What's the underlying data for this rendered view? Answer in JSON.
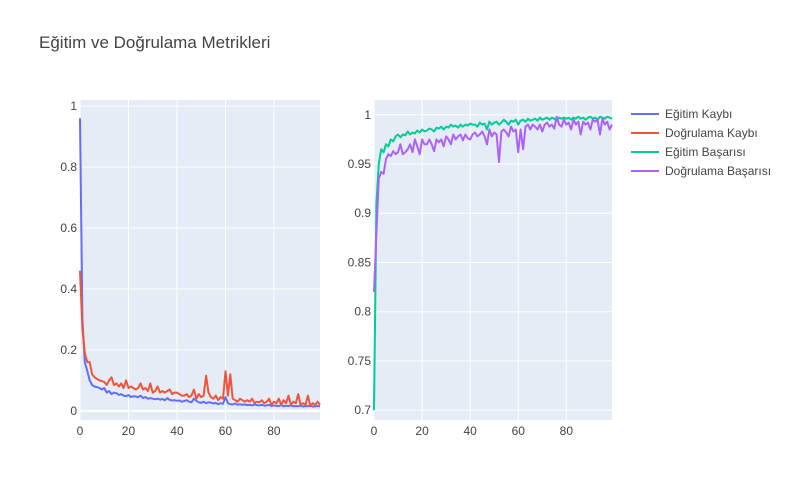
{
  "chart_data": [
    {
      "type": "line",
      "title": "Eğitim ve Doğrulama Metrikleri",
      "panel": "left",
      "xlabel": "",
      "ylabel": "",
      "xlim": [
        0,
        99
      ],
      "ylim": [
        -0.03,
        1.02
      ],
      "x_ticks": [
        0,
        20,
        40,
        60,
        80
      ],
      "y_ticks": [
        0,
        0.2,
        0.4,
        0.6,
        0.8,
        1
      ],
      "y_tick_labels": [
        "0",
        "0.2",
        "0.4",
        "0.6",
        "0.8",
        "1"
      ],
      "grid": true,
      "series": [
        {
          "name": "Eğitim Kaybı",
          "color": "#636efa",
          "x": [
            0,
            1,
            2,
            3,
            4,
            5,
            6,
            7,
            8,
            9,
            10,
            11,
            12,
            13,
            14,
            15,
            16,
            17,
            18,
            19,
            20,
            21,
            22,
            23,
            24,
            25,
            26,
            27,
            28,
            29,
            30,
            31,
            32,
            33,
            34,
            35,
            36,
            37,
            38,
            39,
            40,
            41,
            42,
            43,
            44,
            45,
            46,
            47,
            48,
            49,
            50,
            51,
            52,
            53,
            54,
            55,
            56,
            57,
            58,
            59,
            60,
            61,
            62,
            63,
            64,
            65,
            66,
            67,
            68,
            69,
            70,
            71,
            72,
            73,
            74,
            75,
            76,
            77,
            78,
            79,
            80,
            81,
            82,
            83,
            84,
            85,
            86,
            87,
            88,
            89,
            90,
            91,
            92,
            93,
            94,
            95,
            96,
            97,
            98,
            99
          ],
          "values": [
            0.96,
            0.3,
            0.16,
            0.13,
            0.1,
            0.085,
            0.08,
            0.078,
            0.075,
            0.07,
            0.075,
            0.06,
            0.065,
            0.055,
            0.06,
            0.058,
            0.052,
            0.055,
            0.05,
            0.048,
            0.052,
            0.045,
            0.048,
            0.047,
            0.045,
            0.05,
            0.042,
            0.045,
            0.04,
            0.042,
            0.04,
            0.038,
            0.04,
            0.037,
            0.039,
            0.035,
            0.042,
            0.036,
            0.034,
            0.035,
            0.033,
            0.034,
            0.03,
            0.032,
            0.035,
            0.03,
            0.028,
            0.04,
            0.033,
            0.028,
            0.026,
            0.03,
            0.025,
            0.028,
            0.027,
            0.024,
            0.026,
            0.022,
            0.025,
            0.023,
            0.045,
            0.025,
            0.022,
            0.021,
            0.024,
            0.02,
            0.022,
            0.02,
            0.021,
            0.019,
            0.02,
            0.018,
            0.021,
            0.019,
            0.018,
            0.02,
            0.017,
            0.018,
            0.02,
            0.016,
            0.018,
            0.017,
            0.016,
            0.019,
            0.015,
            0.017,
            0.016,
            0.018,
            0.015,
            0.016,
            0.015,
            0.017,
            0.014,
            0.016,
            0.015,
            0.017,
            0.014,
            0.015,
            0.016,
            0.015
          ]
        },
        {
          "name": "Doğrulama Kaybı",
          "color": "#ef553b",
          "x": [
            0,
            1,
            2,
            3,
            4,
            5,
            6,
            7,
            8,
            9,
            10,
            11,
            12,
            13,
            14,
            15,
            16,
            17,
            18,
            19,
            20,
            21,
            22,
            23,
            24,
            25,
            26,
            27,
            28,
            29,
            30,
            31,
            32,
            33,
            34,
            35,
            36,
            37,
            38,
            39,
            40,
            41,
            42,
            43,
            44,
            45,
            46,
            47,
            48,
            49,
            50,
            51,
            52,
            53,
            54,
            55,
            56,
            57,
            58,
            59,
            60,
            61,
            62,
            63,
            64,
            65,
            66,
            67,
            68,
            69,
            70,
            71,
            72,
            73,
            74,
            75,
            76,
            77,
            78,
            79,
            80,
            81,
            82,
            83,
            84,
            85,
            86,
            87,
            88,
            89,
            90,
            91,
            92,
            93,
            94,
            95,
            96,
            97,
            98,
            99
          ],
          "values": [
            0.46,
            0.27,
            0.19,
            0.16,
            0.16,
            0.12,
            0.11,
            0.105,
            0.1,
            0.098,
            0.095,
            0.085,
            0.1,
            0.11,
            0.085,
            0.09,
            0.08,
            0.09,
            0.075,
            0.1,
            0.075,
            0.08,
            0.075,
            0.07,
            0.075,
            0.09,
            0.07,
            0.075,
            0.065,
            0.09,
            0.06,
            0.065,
            0.08,
            0.06,
            0.065,
            0.06,
            0.065,
            0.07,
            0.055,
            0.06,
            0.06,
            0.055,
            0.05,
            0.05,
            0.055,
            0.045,
            0.05,
            0.07,
            0.04,
            0.055,
            0.045,
            0.05,
            0.115,
            0.06,
            0.045,
            0.04,
            0.05,
            0.035,
            0.045,
            0.04,
            0.13,
            0.05,
            0.12,
            0.04,
            0.035,
            0.03,
            0.04,
            0.035,
            0.03,
            0.035,
            0.03,
            0.04,
            0.025,
            0.03,
            0.028,
            0.035,
            0.025,
            0.03,
            0.04,
            0.02,
            0.03,
            0.025,
            0.04,
            0.02,
            0.035,
            0.025,
            0.05,
            0.02,
            0.03,
            0.025,
            0.055,
            0.02,
            0.025,
            0.02,
            0.05,
            0.015,
            0.025,
            0.02,
            0.03,
            0.02
          ]
        }
      ]
    },
    {
      "type": "line",
      "panel": "right",
      "xlabel": "",
      "ylabel": "",
      "xlim": [
        0,
        99
      ],
      "ylim": [
        0.69,
        1.015
      ],
      "x_ticks": [
        0,
        20,
        40,
        60,
        80
      ],
      "y_ticks": [
        0.7,
        0.75,
        0.8,
        0.85,
        0.9,
        0.95,
        1
      ],
      "y_tick_labels": [
        "0.7",
        "0.75",
        "0.8",
        "0.85",
        "0.9",
        "0.95",
        "1"
      ],
      "grid": true,
      "series": [
        {
          "name": "Eğitim Başarısı",
          "color": "#00cc96",
          "x": [
            0,
            1,
            2,
            3,
            4,
            5,
            6,
            7,
            8,
            9,
            10,
            11,
            12,
            13,
            14,
            15,
            16,
            17,
            18,
            19,
            20,
            21,
            22,
            23,
            24,
            25,
            26,
            27,
            28,
            29,
            30,
            31,
            32,
            33,
            34,
            35,
            36,
            37,
            38,
            39,
            40,
            41,
            42,
            43,
            44,
            45,
            46,
            47,
            48,
            49,
            50,
            51,
            52,
            53,
            54,
            55,
            56,
            57,
            58,
            59,
            60,
            61,
            62,
            63,
            64,
            65,
            66,
            67,
            68,
            69,
            70,
            71,
            72,
            73,
            74,
            75,
            76,
            77,
            78,
            79,
            80,
            81,
            82,
            83,
            84,
            85,
            86,
            87,
            88,
            89,
            90,
            91,
            92,
            93,
            94,
            95,
            96,
            97,
            98,
            99
          ],
          "values": [
            0.7,
            0.91,
            0.95,
            0.965,
            0.962,
            0.97,
            0.968,
            0.975,
            0.973,
            0.978,
            0.98,
            0.977,
            0.98,
            0.979,
            0.983,
            0.98,
            0.982,
            0.981,
            0.984,
            0.982,
            0.985,
            0.983,
            0.984,
            0.986,
            0.985,
            0.983,
            0.987,
            0.986,
            0.988,
            0.985,
            0.988,
            0.987,
            0.99,
            0.988,
            0.989,
            0.987,
            0.99,
            0.988,
            0.99,
            0.989,
            0.991,
            0.99,
            0.99,
            0.988,
            0.992,
            0.99,
            0.991,
            0.985,
            0.993,
            0.99,
            0.992,
            0.993,
            0.99,
            0.992,
            0.995,
            0.993,
            0.99,
            0.994,
            0.993,
            0.995,
            0.99,
            0.994,
            0.995,
            0.993,
            0.996,
            0.994,
            0.995,
            0.996,
            0.994,
            0.997,
            0.995,
            0.996,
            0.997,
            0.995,
            0.997,
            0.996,
            0.994,
            0.997,
            0.996,
            0.997,
            0.996,
            0.997,
            0.995,
            0.997,
            0.996,
            0.998,
            0.996,
            0.997,
            0.995,
            0.997,
            0.998,
            0.996,
            0.997,
            0.995,
            0.998,
            0.997,
            0.996,
            0.998,
            0.997,
            0.996
          ]
        },
        {
          "name": "Doğrulama Başarısı",
          "color": "#ab63fa",
          "x": [
            0,
            1,
            2,
            3,
            4,
            5,
            6,
            7,
            8,
            9,
            10,
            11,
            12,
            13,
            14,
            15,
            16,
            17,
            18,
            19,
            20,
            21,
            22,
            23,
            24,
            25,
            26,
            27,
            28,
            29,
            30,
            31,
            32,
            33,
            34,
            35,
            36,
            37,
            38,
            39,
            40,
            41,
            42,
            43,
            44,
            45,
            46,
            47,
            48,
            49,
            50,
            51,
            52,
            53,
            54,
            55,
            56,
            57,
            58,
            59,
            60,
            61,
            62,
            63,
            64,
            65,
            66,
            67,
            68,
            69,
            70,
            71,
            72,
            73,
            74,
            75,
            76,
            77,
            78,
            79,
            80,
            81,
            82,
            83,
            84,
            85,
            86,
            87,
            88,
            89,
            90,
            91,
            92,
            93,
            94,
            95,
            96,
            97,
            98,
            99
          ],
          "values": [
            0.82,
            0.88,
            0.935,
            0.942,
            0.94,
            0.955,
            0.96,
            0.958,
            0.963,
            0.96,
            0.962,
            0.97,
            0.96,
            0.962,
            0.965,
            0.97,
            0.962,
            0.975,
            0.968,
            0.96,
            0.975,
            0.97,
            0.97,
            0.975,
            0.97,
            0.963,
            0.975,
            0.972,
            0.975,
            0.968,
            0.978,
            0.975,
            0.97,
            0.98,
            0.975,
            0.978,
            0.98,
            0.974,
            0.98,
            0.976,
            0.975,
            0.98,
            0.982,
            0.978,
            0.98,
            0.983,
            0.978,
            0.97,
            0.985,
            0.978,
            0.982,
            0.98,
            0.952,
            0.983,
            0.985,
            0.982,
            0.978,
            0.988,
            0.983,
            0.985,
            0.962,
            0.985,
            0.965,
            0.988,
            0.99,
            0.985,
            0.99,
            0.988,
            0.985,
            0.99,
            0.983,
            0.99,
            0.992,
            0.988,
            0.99,
            0.986,
            0.998,
            0.99,
            0.988,
            0.995,
            0.99,
            0.992,
            0.985,
            0.995,
            0.99,
            0.993,
            0.98,
            0.993,
            0.99,
            0.992,
            0.985,
            0.995,
            0.993,
            0.995,
            0.98,
            0.996,
            0.99,
            0.993,
            0.985,
            0.99
          ]
        }
      ]
    }
  ],
  "legend": {
    "placement": "right",
    "items": [
      "Eğitim Kaybı",
      "Doğrulama Kaybı",
      "Eğitim Başarısı",
      "Doğrulama Başarısı"
    ],
    "colors": [
      "#636efa",
      "#ef553b",
      "#00cc96",
      "#ab63fa"
    ]
  },
  "colors": {
    "plot_background": "#e5ecf6",
    "grid": "#ffffff",
    "text": "#444444"
  }
}
